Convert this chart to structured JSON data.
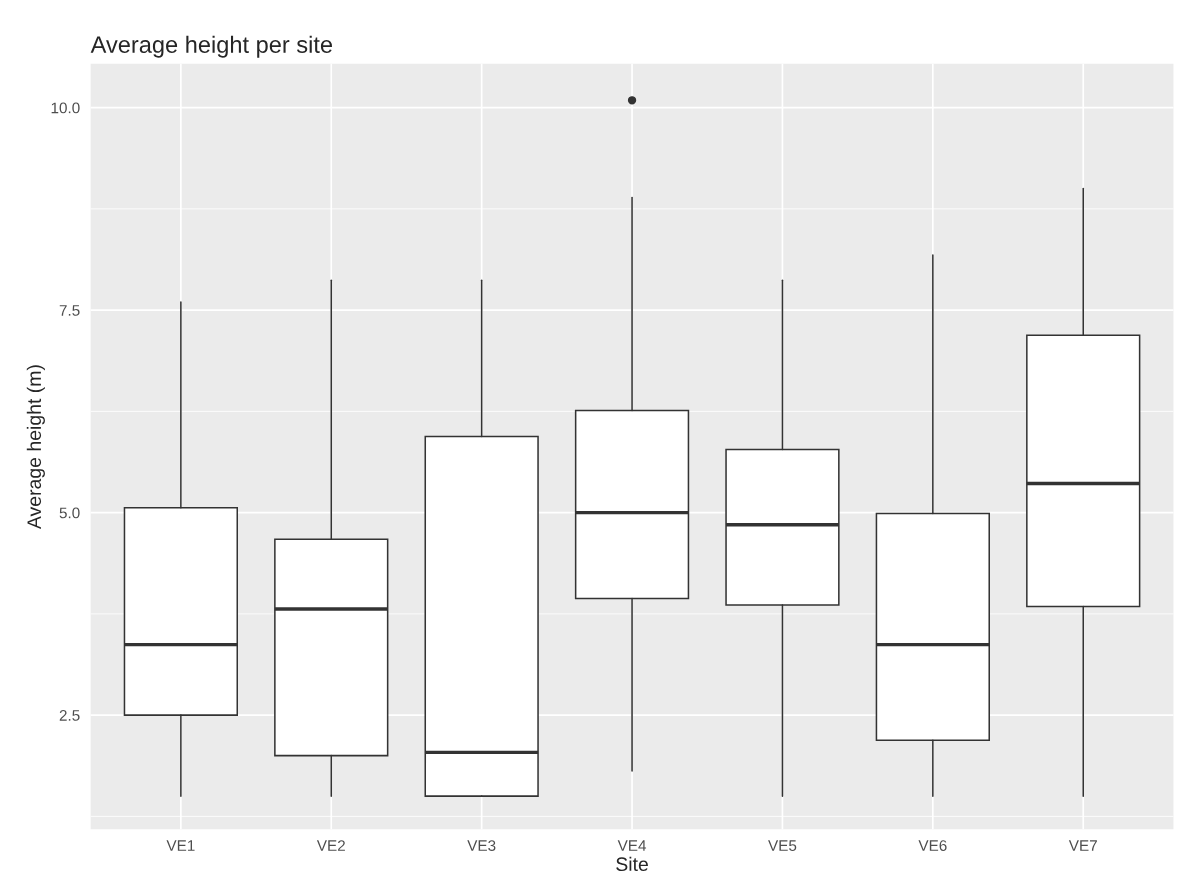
{
  "chart_data": {
    "type": "box",
    "title": "Average height per site",
    "xlabel": "Site",
    "ylabel": "Average height (m)",
    "categories": [
      "VE1",
      "VE2",
      "VE3",
      "VE4",
      "VE5",
      "VE6",
      "VE7"
    ],
    "boxes": [
      {
        "low": 1.5,
        "q1": 2.5,
        "median": 3.37,
        "q3": 5.06,
        "high": 7.6
      },
      {
        "low": 1.5,
        "q1": 2.0,
        "median": 3.81,
        "q3": 4.67,
        "high": 7.87
      },
      {
        "low": 1.5,
        "q1": 1.5,
        "median": 2.04,
        "q3": 5.94,
        "high": 7.87
      },
      {
        "low": 1.81,
        "q1": 3.94,
        "median": 5.0,
        "q3": 6.26,
        "high": 8.89,
        "outliers": [
          10.09
        ]
      },
      {
        "low": 1.5,
        "q1": 3.86,
        "median": 4.85,
        "q3": 5.78,
        "high": 7.87
      },
      {
        "low": 1.5,
        "q1": 2.19,
        "median": 3.37,
        "q3": 4.99,
        "high": 8.18
      },
      {
        "low": 1.5,
        "q1": 3.84,
        "median": 5.36,
        "q3": 7.19,
        "high": 9.0
      }
    ],
    "ylim": [
      1.09,
      10.54
    ],
    "yticks": [
      {
        "value": 2.5,
        "label": "2.5"
      },
      {
        "value": 5,
        "label": "5.0"
      },
      {
        "value": 7.5,
        "label": "7.5"
      },
      {
        "value": 10,
        "label": "10.0"
      }
    ],
    "grid": true,
    "legend": false
  }
}
